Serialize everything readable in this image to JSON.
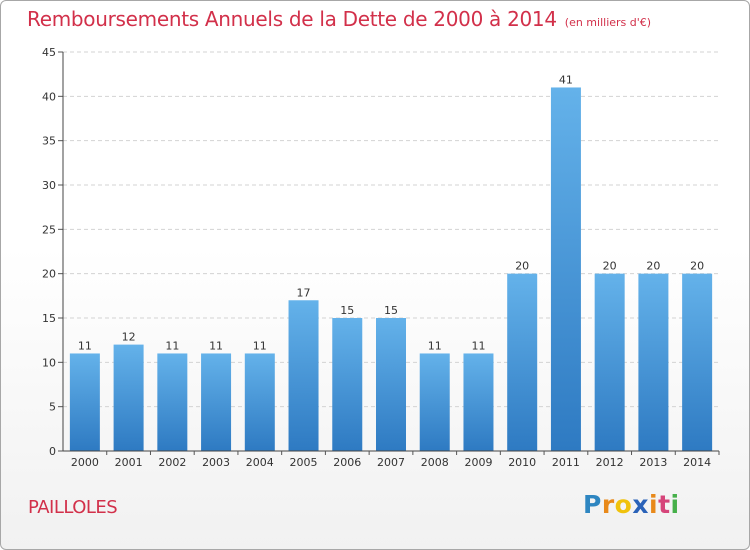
{
  "header": {
    "title": "Remboursements Annuels de la Dette de 2000 à 2014",
    "subtitle": "(en milliers d'€)"
  },
  "footer": {
    "commune": "PAILLOLES",
    "logo_letters": [
      "P",
      "r",
      "o",
      "x",
      "i",
      "t",
      "i"
    ],
    "logo_colors": [
      "#2e86c1",
      "#e8891a",
      "#f0c20c",
      "#2a62b8",
      "#e8891a",
      "#d6457a",
      "#46b04a"
    ]
  },
  "colors": {
    "accent": "#d2304a",
    "bar_top": "#64b2ea",
    "bar_bottom": "#2e7ac2",
    "grid": "#d3d3d3"
  },
  "chart_data": {
    "type": "bar",
    "title": "Remboursements Annuels de la Dette de 2000 à 2014",
    "subtitle": "(en milliers d'€)",
    "categories": [
      "2000",
      "2001",
      "2002",
      "2003",
      "2004",
      "2005",
      "2006",
      "2007",
      "2008",
      "2009",
      "2010",
      "2011",
      "2012",
      "2013",
      "2014"
    ],
    "values": [
      11,
      12,
      11,
      11,
      11,
      17,
      15,
      15,
      11,
      11,
      20,
      41,
      20,
      20,
      20
    ],
    "data_labels": [
      "11",
      "12",
      "11",
      "11",
      "11",
      "17",
      "15",
      "15",
      "11",
      "11",
      "20",
      "41",
      "20",
      "20",
      "20"
    ],
    "yticks": [
      0,
      5,
      10,
      15,
      20,
      25,
      30,
      35,
      40,
      45
    ],
    "ylim": [
      0,
      45
    ],
    "xlabel": "",
    "ylabel": "",
    "grid": "horizontal dashed"
  }
}
